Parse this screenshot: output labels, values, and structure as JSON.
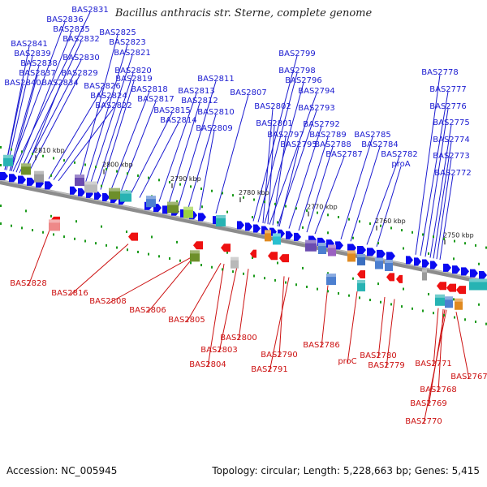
{
  "title": "Bacillus anthracis str. Sterne, complete genome",
  "footer": {
    "accession": "Accession: NC_005945",
    "summary": "Topology: circular; Length: 5,228,663 bp; Genes: 5,415"
  },
  "colors": {
    "forward_label": "#1a1ad0",
    "reverse_label": "#cc1111",
    "forward_gene": "#0a0af0",
    "reverse_gene": "#ee1111",
    "backbone": "#888888"
  },
  "ticks": [
    "2810 kbp",
    "2800 kbp",
    "2790 kbp",
    "2780 kbp",
    "2770 kbp",
    "2760 kbp",
    "2750 kbp"
  ],
  "forward_labels": [
    "BAS2831",
    "BAS2836",
    "BAS2835",
    "BAS2832",
    "BAS2841",
    "BAS2839",
    "BAS2830",
    "BAS2838",
    "BAS2837",
    "BAS2829",
    "BAS2840",
    "BAS2834",
    "BAS2825",
    "BAS2823",
    "BAS2821",
    "BAS2820",
    "BAS2819",
    "BAS2826",
    "BAS2824",
    "BAS2822",
    "BAS2818",
    "BAS2817",
    "BAS2815",
    "BAS2814",
    "BAS2813",
    "BAS2812",
    "BAS2811",
    "BAS2810",
    "BAS2809",
    "BAS2807",
    "BAS2799",
    "BAS2798",
    "BAS2796",
    "BAS2794",
    "BAS2802",
    "BAS2793",
    "BAS2801",
    "BAS2797",
    "BAS2795",
    "BAS2792",
    "BAS2789",
    "BAS2788",
    "BAS2787",
    "BAS2785",
    "BAS2784",
    "BAS2782",
    "proA",
    "BAS2778",
    "BAS2777",
    "BAS2776",
    "BAS2775",
    "BAS2774",
    "BAS2773",
    "BAS2772"
  ],
  "reverse_labels": [
    "BAS2828",
    "BAS2816",
    "BAS2808",
    "BAS2806",
    "BAS2805",
    "BAS2803",
    "BAS2804",
    "BAS2800",
    "BAS2790",
    "BAS2791",
    "BAS2786",
    "proC",
    "BAS2780",
    "BAS2779",
    "BAS2771",
    "BAS2768",
    "BAS2767",
    "BAS2769",
    "BAS2770"
  ]
}
